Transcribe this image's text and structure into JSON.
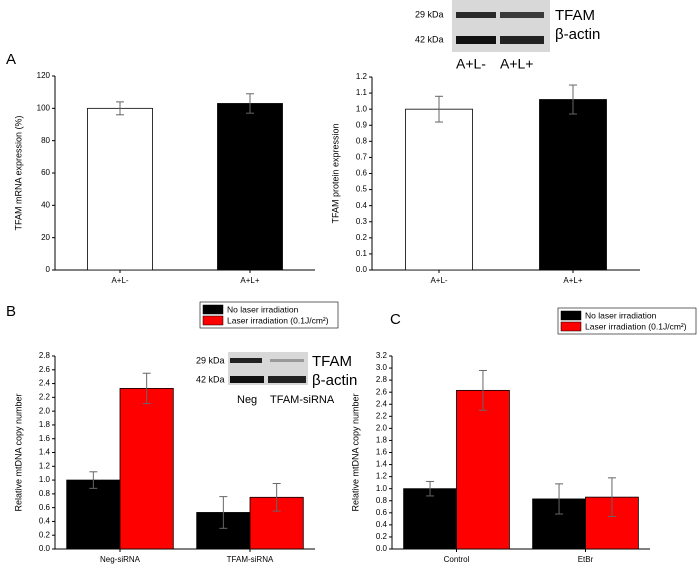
{
  "panels": [
    "A",
    "B",
    "C"
  ],
  "blots": [
    {
      "sizes": [
        "29 kDa",
        "42 kDa"
      ],
      "proteins": [
        "TFAM",
        "β-actin"
      ],
      "lanes": [
        "A+L-",
        "A+L+"
      ]
    },
    {
      "sizes": [
        "29 kDa",
        "42 kDa"
      ],
      "proteins": [
        "TFAM",
        "β-actin"
      ],
      "lanes": [
        "Neg",
        "TFAM-siRNA"
      ]
    }
  ],
  "chart_data": [
    {
      "type": "bar",
      "y_label": "TFAM mRNA expression (%)",
      "categories": [
        "A+L-",
        "A+L+"
      ],
      "values": [
        100,
        103
      ],
      "errors": [
        4,
        6
      ],
      "colors": [
        "#ffffff",
        "#000000"
      ],
      "ylim": [
        0,
        120
      ],
      "yticks": [
        0,
        20,
        40,
        60,
        80,
        100,
        120
      ]
    },
    {
      "type": "bar",
      "y_label": "TFAM protein expression",
      "categories": [
        "A+L-",
        "A+L+"
      ],
      "values": [
        1.0,
        1.06
      ],
      "errors": [
        0.08,
        0.09
      ],
      "colors": [
        "#ffffff",
        "#000000"
      ],
      "ylim": [
        0,
        1.2
      ],
      "yticks": [
        {
          "value": 0,
          "label": "0.0"
        },
        0.1,
        0.2,
        0.3,
        0.4,
        0.5,
        0.6,
        0.7,
        0.8,
        0.9,
        {
          "value": 1,
          "label": "1.0"
        },
        1.1,
        1.2
      ]
    },
    {
      "type": "grouped-bar",
      "y_label": "Relative mtDNA copy number",
      "categories": [
        "Neg-siRNA",
        "TFAM-siRNA"
      ],
      "series": [
        {
          "name": "No laser irradiation",
          "color": "#000000",
          "values": [
            1.0,
            0.53
          ],
          "errors": [
            0.12,
            0.23
          ]
        },
        {
          "name": "Laser irradiation (0.1J/cm²)",
          "color": "#ff0000",
          "values": [
            2.33,
            0.75
          ],
          "errors": [
            0.22,
            0.2
          ]
        }
      ],
      "ylim": [
        0,
        2.8
      ],
      "yticks": [
        {
          "value": 0,
          "label": "0.0"
        },
        0.2,
        0.4,
        0.6,
        0.8,
        {
          "value": 1,
          "label": "1.0"
        },
        1.2,
        1.4,
        1.6,
        1.8,
        {
          "value": 2,
          "label": "2.0"
        },
        2.2,
        2.4,
        2.6,
        2.8
      ]
    },
    {
      "type": "grouped-bar",
      "y_label": "Relative mtDNA copy number",
      "categories": [
        "Control",
        "EtBr"
      ],
      "series": [
        {
          "name": "No laser irradiation",
          "color": "#000000",
          "values": [
            1.0,
            0.83
          ],
          "errors": [
            0.12,
            0.25
          ]
        },
        {
          "name": "Laser irradiation (0.1J/cm²)",
          "color": "#ff0000",
          "values": [
            2.63,
            0.86
          ],
          "errors": [
            0.33,
            0.32
          ]
        }
      ],
      "ylim": [
        0,
        3.2
      ],
      "yticks": [
        {
          "value": 0,
          "label": "0.0"
        },
        0.2,
        0.4,
        0.6,
        0.8,
        {
          "value": 1,
          "label": "1.0"
        },
        1.2,
        1.4,
        1.6,
        1.8,
        {
          "value": 2,
          "label": "2.0"
        },
        2.2,
        2.4,
        2.6,
        2.8,
        {
          "value": 3,
          "label": "3.0"
        },
        3.2
      ]
    }
  ]
}
